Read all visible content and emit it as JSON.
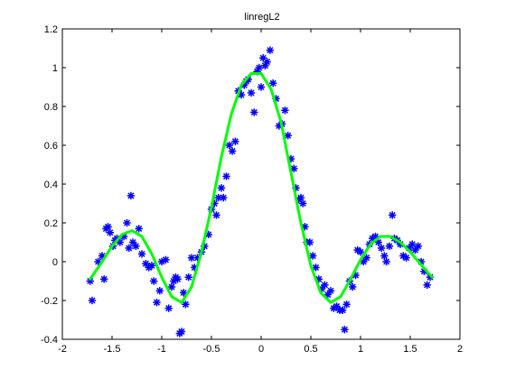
{
  "chart_data": {
    "type": "scatter",
    "title": "linregL2",
    "xlabel": "",
    "ylabel": "",
    "xlim": [
      -2,
      2
    ],
    "ylim": [
      -0.4,
      1.2
    ],
    "grid": false,
    "legend": "none",
    "x_ticks": [
      -2,
      -1.5,
      -1,
      -0.5,
      0,
      0.5,
      1,
      1.5,
      2
    ],
    "x_tick_labels": [
      "-2",
      "-1.5",
      "-1",
      "-0.5",
      "0",
      "0.5",
      "1",
      "1.5",
      "2"
    ],
    "y_ticks": [
      -0.4,
      -0.2,
      0,
      0.2,
      0.4,
      0.6,
      0.8,
      1,
      1.2
    ],
    "y_tick_labels": [
      "-0.4",
      "-0.2",
      "0",
      "0.2",
      "0.4",
      "0.6",
      "0.8",
      "1",
      "1.2"
    ],
    "series": [
      {
        "type": "scatter",
        "marker": "asterisk",
        "color": "#0000ff",
        "points": [
          [
            -1.72,
            -0.1
          ],
          [
            -1.7,
            -0.2
          ],
          [
            -1.64,
            0.0
          ],
          [
            -1.6,
            0.03
          ],
          [
            -1.58,
            -0.09
          ],
          [
            -1.56,
            0.17
          ],
          [
            -1.54,
            0.18
          ],
          [
            -1.52,
            0.15
          ],
          [
            -1.49,
            0.08
          ],
          [
            -1.47,
            0.11
          ],
          [
            -1.45,
            0.12
          ],
          [
            -1.42,
            0.1
          ],
          [
            -1.38,
            0.13
          ],
          [
            -1.35,
            0.2
          ],
          [
            -1.33,
            0.07
          ],
          [
            -1.31,
            0.34
          ],
          [
            -1.29,
            0.1
          ],
          [
            -1.26,
            0.08
          ],
          [
            -1.23,
            0.17
          ],
          [
            -1.2,
            0.04
          ],
          [
            -1.16,
            -0.01
          ],
          [
            -1.13,
            -0.03
          ],
          [
            -1.1,
            -0.02
          ],
          [
            -1.08,
            -0.1
          ],
          [
            -1.05,
            -0.21
          ],
          [
            -1.02,
            -0.15
          ],
          [
            -1.0,
            0.0
          ],
          [
            -0.96,
            0.01
          ],
          [
            -0.93,
            -0.24
          ],
          [
            -0.9,
            -0.13
          ],
          [
            -0.88,
            -0.1
          ],
          [
            -0.86,
            -0.08
          ],
          [
            -0.84,
            -0.09
          ],
          [
            -0.82,
            -0.37
          ],
          [
            -0.8,
            -0.36
          ],
          [
            -0.78,
            -0.16
          ],
          [
            -0.76,
            -0.22
          ],
          [
            -0.73,
            -0.08
          ],
          [
            -0.7,
            0.02
          ],
          [
            -0.67,
            -0.03
          ],
          [
            -0.64,
            0.02
          ],
          [
            -0.6,
            0.05
          ],
          [
            -0.57,
            0.08
          ],
          [
            -0.53,
            0.14
          ],
          [
            -0.5,
            0.27
          ],
          [
            -0.47,
            0.3
          ],
          [
            -0.45,
            0.24
          ],
          [
            -0.43,
            0.33
          ],
          [
            -0.4,
            0.38
          ],
          [
            -0.38,
            0.33
          ],
          [
            -0.35,
            0.44
          ],
          [
            -0.32,
            0.6
          ],
          [
            -0.29,
            0.57
          ],
          [
            -0.26,
            0.62
          ],
          [
            -0.23,
            0.88
          ],
          [
            -0.2,
            0.86
          ],
          [
            -0.17,
            0.91
          ],
          [
            -0.15,
            0.93
          ],
          [
            -0.13,
            0.94
          ],
          [
            -0.1,
            0.87
          ],
          [
            -0.07,
            0.77
          ],
          [
            -0.04,
            0.98
          ],
          [
            -0.02,
            1.0
          ],
          [
            0.0,
            0.9
          ],
          [
            0.02,
            1.05
          ],
          [
            0.04,
            1.01
          ],
          [
            0.06,
            1.03
          ],
          [
            0.09,
            1.09
          ],
          [
            0.12,
            0.92
          ],
          [
            0.15,
            0.84
          ],
          [
            0.18,
            0.7
          ],
          [
            0.21,
            0.71
          ],
          [
            0.24,
            0.78
          ],
          [
            0.27,
            0.65
          ],
          [
            0.3,
            0.53
          ],
          [
            0.33,
            0.48
          ],
          [
            0.35,
            0.38
          ],
          [
            0.38,
            0.32
          ],
          [
            0.4,
            0.33
          ],
          [
            0.42,
            0.3
          ],
          [
            0.44,
            0.18
          ],
          [
            0.46,
            0.1
          ],
          [
            0.49,
            0.1
          ],
          [
            0.52,
            0.03
          ],
          [
            0.55,
            -0.03
          ],
          [
            0.58,
            -0.09
          ],
          [
            0.61,
            -0.14
          ],
          [
            0.64,
            -0.12
          ],
          [
            0.67,
            -0.17
          ],
          [
            0.7,
            -0.15
          ],
          [
            0.73,
            -0.24
          ],
          [
            0.76,
            -0.23
          ],
          [
            0.79,
            -0.25
          ],
          [
            0.82,
            -0.25
          ],
          [
            0.84,
            -0.35
          ],
          [
            0.86,
            -0.22
          ],
          [
            0.89,
            -0.1
          ],
          [
            0.92,
            -0.13
          ],
          [
            0.95,
            -0.07
          ],
          [
            0.97,
            0.06
          ],
          [
            1.0,
            0.05
          ],
          [
            1.03,
            0.0
          ],
          [
            1.06,
            0.02
          ],
          [
            1.09,
            0.09
          ],
          [
            1.12,
            0.12
          ],
          [
            1.15,
            0.13
          ],
          [
            1.18,
            0.1
          ],
          [
            1.21,
            0.07
          ],
          [
            1.24,
            0.03
          ],
          [
            1.26,
            0.0
          ],
          [
            1.29,
            0.08
          ],
          [
            1.32,
            0.24
          ],
          [
            1.34,
            0.12
          ],
          [
            1.37,
            0.11
          ],
          [
            1.4,
            0.09
          ],
          [
            1.43,
            0.03
          ],
          [
            1.46,
            0.02
          ],
          [
            1.49,
            0.07
          ],
          [
            1.52,
            0.09
          ],
          [
            1.55,
            0.06
          ],
          [
            1.58,
            0.08
          ],
          [
            1.61,
            0.0
          ],
          [
            1.64,
            -0.05
          ],
          [
            1.67,
            -0.12
          ],
          [
            1.7,
            -0.08
          ]
        ]
      },
      {
        "type": "line",
        "color": "#00ff00",
        "x": [
          -1.72,
          -1.6,
          -1.5,
          -1.4,
          -1.3,
          -1.2,
          -1.1,
          -1.0,
          -0.9,
          -0.8,
          -0.7,
          -0.6,
          -0.5,
          -0.4,
          -0.3,
          -0.2,
          -0.1,
          0.0,
          0.1,
          0.2,
          0.3,
          0.4,
          0.5,
          0.6,
          0.7,
          0.8,
          0.9,
          1.0,
          1.1,
          1.2,
          1.3,
          1.4,
          1.5,
          1.6,
          1.72
        ],
        "y": [
          -0.09,
          0.0,
          0.08,
          0.14,
          0.16,
          0.13,
          0.04,
          -0.08,
          -0.18,
          -0.21,
          -0.13,
          0.05,
          0.28,
          0.54,
          0.76,
          0.91,
          0.97,
          0.97,
          0.89,
          0.72,
          0.46,
          0.2,
          -0.02,
          -0.16,
          -0.21,
          -0.18,
          -0.09,
          0.01,
          0.09,
          0.13,
          0.13,
          0.1,
          0.05,
          -0.01,
          -0.08
        ]
      }
    ]
  }
}
